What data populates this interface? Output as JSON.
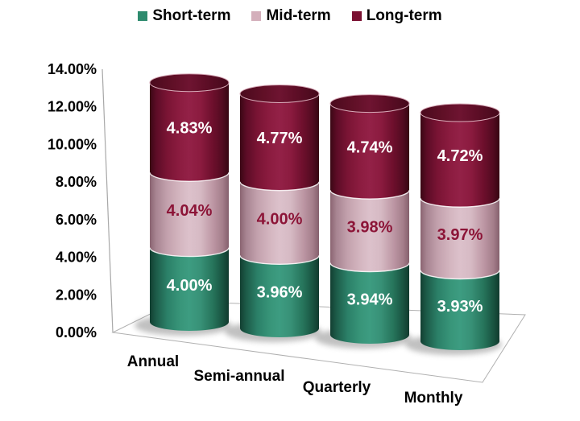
{
  "chart_data": {
    "type": "bar",
    "subtype": "stacked-cylinder-3d",
    "title": "",
    "categories": [
      "Annual",
      "Semi-annual",
      "Quarterly",
      "Monthly"
    ],
    "series": [
      {
        "name": "Short-term",
        "color": "#2E8B6E",
        "label_color": "#FFFFFF",
        "values": [
          4.0,
          3.96,
          3.94,
          3.93
        ],
        "display": [
          "4.00%",
          "3.96%",
          "3.94%",
          "3.93%"
        ]
      },
      {
        "name": "Mid-term",
        "color": "#D4AFBB",
        "label_color": "#8C1437",
        "values": [
          4.04,
          4.0,
          3.98,
          3.97
        ],
        "display": [
          "4.04%",
          "4.00%",
          "3.98%",
          "3.97%"
        ]
      },
      {
        "name": "Long-term",
        "color": "#7A1031",
        "label_color": "#FFFFFF",
        "values": [
          4.83,
          4.77,
          4.74,
          4.72
        ],
        "display": [
          "4.83%",
          "4.77%",
          "4.74%",
          "4.72%"
        ]
      }
    ],
    "y_axis": {
      "min": 0,
      "max": 14,
      "step": 2,
      "tick_labels": [
        "14.00%",
        "12.00%",
        "10.00%",
        "8.00%",
        "6.00%",
        "4.00%",
        "2.00%",
        "0.00%"
      ]
    },
    "legend_position": "top",
    "grid": false,
    "background": "#FFFFFF"
  }
}
